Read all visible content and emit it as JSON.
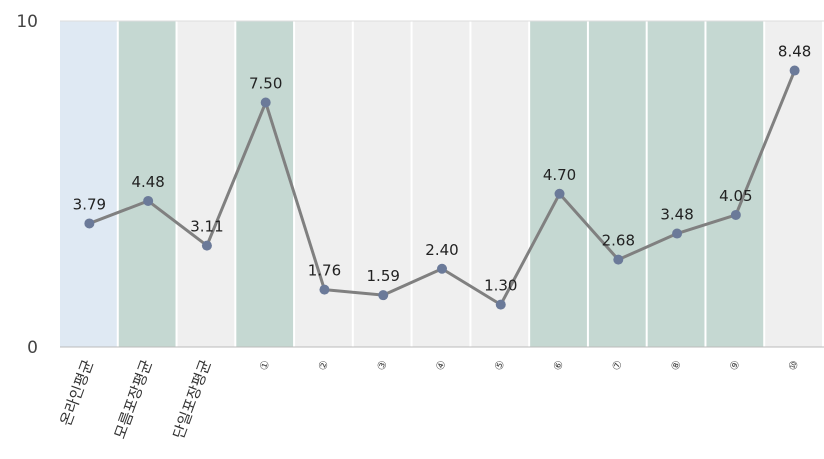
{
  "chart_data": {
    "type": "line",
    "categories": [
      "온라인평균",
      "모름포장평균",
      "단일포장평균",
      "①",
      "②",
      "③",
      "④",
      "⑤",
      "⑥",
      "⑦",
      "⑧",
      "⑨",
      "⑩"
    ],
    "values": [
      3.79,
      4.48,
      3.11,
      7.5,
      1.76,
      1.59,
      2.4,
      1.3,
      4.7,
      2.68,
      3.48,
      4.05,
      8.48
    ],
    "data_labels": [
      "3.79",
      "4.48",
      "3.11",
      "7.50",
      "1.76",
      "1.59",
      "2.40",
      "1.30",
      "4.70",
      "2.68",
      "3.48",
      "4.05",
      "8.48"
    ],
    "band_colors": [
      "#dfe9f3",
      "#c5d8d2",
      "#efefef",
      "#c5d8d2",
      "#efefef",
      "#efefef",
      "#efefef",
      "#efefef",
      "#c5d8d2",
      "#c5d8d2",
      "#c5d8d2",
      "#c5d8d2",
      "#efefef"
    ],
    "ylim": [
      0,
      10
    ],
    "y_ticks": [
      "0",
      "10"
    ],
    "line_color": "#808080",
    "marker_color": "#6b7a99",
    "grid": false
  }
}
